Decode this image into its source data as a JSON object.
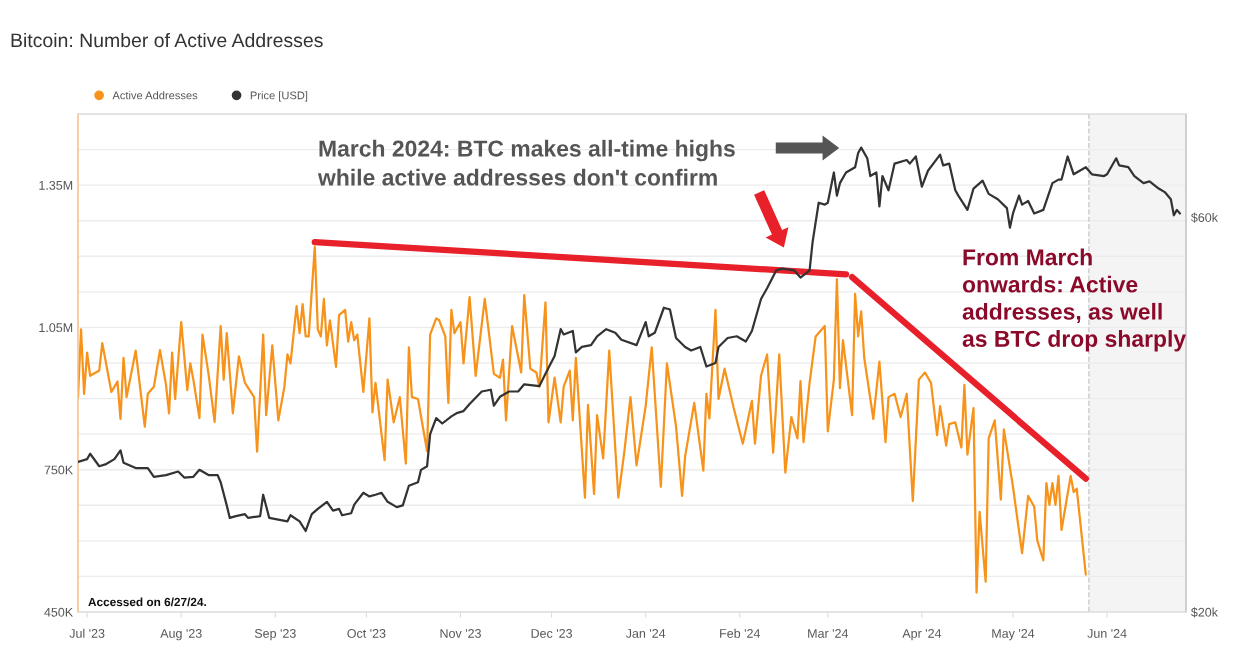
{
  "chart_data": {
    "type": "line",
    "title": "Bitcoin: Number of Active Addresses",
    "annotations": [
      "March 2024: BTC makes all-time highs\nwhile active addresses don't confirm",
      "From March\nonwards: Active\naddresses, as well\nas BTC drop sharply",
      "Accessed on 6/27/24."
    ],
    "series": [
      {
        "name": "Active Addresses",
        "color": "#f7931a",
        "x": [
          "2023-06-28",
          "2023-06-29",
          "2023-06-30",
          "2023-07-01",
          "2023-07-02",
          "2023-07-05",
          "2023-07-06",
          "2023-07-09",
          "2023-07-11",
          "2023-07-12",
          "2023-07-13",
          "2023-07-14",
          "2023-07-17",
          "2023-07-20",
          "2023-07-21",
          "2023-07-23",
          "2023-07-25",
          "2023-07-27",
          "2023-07-28",
          "2023-07-29",
          "2023-07-30",
          "2023-08-01",
          "2023-08-03",
          "2023-08-04",
          "2023-08-05",
          "2023-08-07",
          "2023-08-08",
          "2023-08-10",
          "2023-08-12",
          "2023-08-14",
          "2023-08-15",
          "2023-08-16",
          "2023-08-18",
          "2023-08-20",
          "2023-08-22",
          "2023-08-25",
          "2023-08-26",
          "2023-08-28",
          "2023-08-29",
          "2023-08-31",
          "2023-09-02",
          "2023-09-04",
          "2023-09-05",
          "2023-09-06",
          "2023-09-08",
          "2023-09-09",
          "2023-09-10",
          "2023-09-11",
          "2023-09-12",
          "2023-09-14",
          "2023-09-15",
          "2023-09-16",
          "2023-09-17",
          "2023-09-18",
          "2023-09-19",
          "2023-09-21",
          "2023-09-22",
          "2023-09-24",
          "2023-09-25",
          "2023-09-26",
          "2023-09-27",
          "2023-09-28",
          "2023-09-30",
          "2023-10-02",
          "2023-10-03",
          "2023-10-04",
          "2023-10-07",
          "2023-10-08",
          "2023-10-10",
          "2023-10-12",
          "2023-10-14",
          "2023-10-15",
          "2023-10-16",
          "2023-10-18",
          "2023-10-21",
          "2023-10-22",
          "2023-10-24",
          "2023-10-25",
          "2023-10-27",
          "2023-10-28",
          "2023-10-29",
          "2023-10-30",
          "2023-11-01",
          "2023-11-02",
          "2023-11-04",
          "2023-11-06",
          "2023-11-09",
          "2023-11-12",
          "2023-11-14",
          "2023-11-15",
          "2023-11-16",
          "2023-11-18",
          "2023-11-21",
          "2023-11-22",
          "2023-11-24",
          "2023-11-26",
          "2023-11-27",
          "2023-11-29",
          "2023-11-30",
          "2023-12-02",
          "2023-12-04",
          "2023-12-05",
          "2023-12-07",
          "2023-12-08",
          "2023-12-09",
          "2023-12-12",
          "2023-12-13",
          "2023-12-15",
          "2023-12-16",
          "2023-12-18",
          "2023-12-20",
          "2023-12-23",
          "2023-12-25",
          "2023-12-27",
          "2023-12-29",
          "2024-01-01",
          "2024-01-03",
          "2024-01-06",
          "2024-01-08",
          "2024-01-11",
          "2024-01-13",
          "2024-01-14",
          "2024-01-17",
          "2024-01-20",
          "2024-01-21",
          "2024-01-22",
          "2024-01-24",
          "2024-01-25",
          "2024-01-27",
          "2024-01-30",
          "2024-02-02",
          "2024-02-05",
          "2024-02-06",
          "2024-02-08",
          "2024-02-10",
          "2024-02-12",
          "2024-02-14",
          "2024-02-16",
          "2024-02-18",
          "2024-02-20",
          "2024-02-21",
          "2024-02-22",
          "2024-02-24",
          "2024-02-26",
          "2024-02-29",
          "2024-03-01",
          "2024-03-03",
          "2024-03-04",
          "2024-03-05",
          "2024-03-06",
          "2024-03-09",
          "2024-03-10",
          "2024-03-11",
          "2024-03-12",
          "2024-03-13",
          "2024-03-16",
          "2024-03-18",
          "2024-03-20",
          "2024-03-21",
          "2024-03-23",
          "2024-03-25",
          "2024-03-27",
          "2024-03-29",
          "2024-03-31",
          "2024-04-02",
          "2024-04-04",
          "2024-04-06",
          "2024-04-07",
          "2024-04-09",
          "2024-04-10",
          "2024-04-12",
          "2024-04-14",
          "2024-04-15",
          "2024-04-16",
          "2024-04-18",
          "2024-04-19",
          "2024-04-20",
          "2024-04-22",
          "2024-04-23",
          "2024-04-25",
          "2024-04-27",
          "2024-04-28",
          "2024-05-01",
          "2024-05-04",
          "2024-05-06",
          "2024-05-08",
          "2024-05-09",
          "2024-05-11",
          "2024-05-12",
          "2024-05-13",
          "2024-05-14",
          "2024-05-15",
          "2024-05-16",
          "2024-05-17",
          "2024-05-20",
          "2024-05-21",
          "2024-05-22",
          "2024-05-25"
        ],
        "values": [
          903000,
          1046000,
          910000,
          997000,
          948000,
          959000,
          1017000,
          914000,
          936000,
          857000,
          986000,
          903000,
          1001000,
          841000,
          910000,
          925000,
          1002000,
          929000,
          869000,
          997000,
          899000,
          1061000,
          918000,
          974000,
          940000,
          859000,
          1035000,
          952000,
          851000,
          1053000,
          940000,
          1038000,
          869000,
          989000,
          933000,
          903000,
          788000,
          1035000,
          865000,
          1012000,
          854000,
          925000,
          993000,
          974000,
          1095000,
          1038000,
          1099000,
          1031000,
          1031000,
          1220000,
          1046000,
          1031000,
          1110000,
          1012000,
          1065000,
          967000,
          1076000,
          1087000,
          1020000,
          1061000,
          1023000,
          1035000,
          914000,
          1069000,
          871000,
          933000,
          770000,
          940000,
          850000,
          903000,
          763000,
          1008000,
          903000,
          899000,
          789000,
          1035000,
          1069000,
          1065000,
          1031000,
          891000,
          1087000,
          1038000,
          1061000,
          974000,
          1114000,
          948000,
          1110000,
          952000,
          944000,
          982000,
          854000,
          1053000,
          955000,
          1118000,
          963000,
          955000,
          925000,
          1103000,
          850000,
          944000,
          850000,
          925000,
          959000,
          854000,
          986000,
          691000,
          887000,
          699000,
          865000,
          774000,
          1001000,
          691000,
          789000,
          903000,
          759000,
          884000,
          1008000,
          714000,
          974000,
          842000,
          695000,
          778000,
          891000,
          748000,
          910000,
          858000,
          1087000,
          899000,
          963000,
          880000,
          805000,
          895000,
          805000,
          948000,
          993000,
          786000,
          993000,
          744000,
          861000,
          816000,
          937000,
          808000,
          933000,
          1031000,
          1053000,
          831000,
          940000,
          1152000,
          922000,
          1023000,
          865000,
          1121000,
          1031000,
          1084000,
          986000,
          857000,
          978000,
          808000,
          903000,
          910000,
          861000,
          910000,
          684000,
          940000,
          955000,
          933000,
          823000,
          884000,
          801000,
          846000,
          850000,
          797000,
          929000,
          782000,
          880000,
          491000,
          661000,
          514000,
          816000,
          854000,
          687000,
          835000,
          714000,
          574000,
          695000,
          672000,
          601000,
          559000,
          722000,
          676000,
          722000,
          676000,
          737000,
          623000,
          737000,
          703000,
          710000,
          529000
        ]
      },
      {
        "name": "Price [USD]",
        "color": "#333333",
        "axis": "y2",
        "x": [
          "2023-06-28",
          "2023-07-01",
          "2023-07-02",
          "2023-07-05",
          "2023-07-07",
          "2023-07-10",
          "2023-07-12",
          "2023-07-13",
          "2023-07-17",
          "2023-07-21",
          "2023-07-23",
          "2023-07-27",
          "2023-07-31",
          "2023-08-02",
          "2023-08-05",
          "2023-08-07",
          "2023-08-10",
          "2023-08-13",
          "2023-08-14",
          "2023-08-16",
          "2023-08-17",
          "2023-08-19",
          "2023-08-22",
          "2023-08-23",
          "2023-08-27",
          "2023-08-28",
          "2023-08-30",
          "2023-09-02",
          "2023-09-05",
          "2023-09-06",
          "2023-09-09",
          "2023-09-11",
          "2023-09-13",
          "2023-09-15",
          "2023-09-18",
          "2023-09-20",
          "2023-09-22",
          "2023-09-23",
          "2023-09-26",
          "2023-09-27",
          "2023-09-30",
          "2023-10-02",
          "2023-10-04",
          "2023-10-06",
          "2023-10-08",
          "2023-10-11",
          "2023-10-13",
          "2023-10-15",
          "2023-10-18",
          "2023-10-19",
          "2023-10-21",
          "2023-10-22",
          "2023-10-24",
          "2023-10-26",
          "2023-10-29",
          "2023-10-31",
          "2023-11-02",
          "2023-11-04",
          "2023-11-08",
          "2023-11-11",
          "2023-11-12",
          "2023-11-14",
          "2023-11-17",
          "2023-11-20",
          "2023-11-22",
          "2023-11-27",
          "2023-11-29",
          "2023-12-02",
          "2023-12-04",
          "2023-12-05",
          "2023-12-08",
          "2023-12-09",
          "2023-12-11",
          "2023-12-14",
          "2023-12-16",
          "2023-12-19",
          "2023-12-22",
          "2023-12-24",
          "2023-12-29",
          "2024-01-01",
          "2024-01-02",
          "2024-01-04",
          "2024-01-07",
          "2024-01-09",
          "2024-01-11",
          "2024-01-14",
          "2024-01-16",
          "2024-01-19",
          "2024-01-21",
          "2024-01-24",
          "2024-01-25",
          "2024-01-28",
          "2024-01-31",
          "2024-02-03",
          "2024-02-05",
          "2024-02-08",
          "2024-02-10",
          "2024-02-13",
          "2024-02-15",
          "2024-02-19",
          "2024-02-21",
          "2024-02-24",
          "2024-02-25",
          "2024-02-27",
          "2024-02-29",
          "2024-03-01",
          "2024-03-03",
          "2024-03-04",
          "2024-03-05",
          "2024-03-07",
          "2024-03-10",
          "2024-03-11",
          "2024-03-12",
          "2024-03-14",
          "2024-03-15",
          "2024-03-17",
          "2024-03-18",
          "2024-03-19",
          "2024-03-21",
          "2024-03-23",
          "2024-03-27",
          "2024-03-28",
          "2024-03-30",
          "2024-04-01",
          "2024-04-03",
          "2024-04-07",
          "2024-04-08",
          "2024-04-10",
          "2024-04-12",
          "2024-04-13",
          "2024-04-16",
          "2024-04-18",
          "2024-04-21",
          "2024-04-23",
          "2024-04-26",
          "2024-04-29",
          "2024-04-30",
          "2024-05-01",
          "2024-05-03",
          "2024-05-04",
          "2024-05-06",
          "2024-05-08",
          "2024-05-11",
          "2024-05-14",
          "2024-05-16",
          "2024-05-17",
          "2024-05-19",
          "2024-05-21",
          "2024-05-25",
          "2024-05-27",
          "2024-05-31",
          "2024-06-01",
          "2024-06-04",
          "2024-06-05",
          "2024-06-08",
          "2024-06-10",
          "2024-06-13",
          "2024-06-15",
          "2024-06-18",
          "2024-06-20",
          "2024-06-22",
          "2024-06-23",
          "2024-06-24",
          "2024-06-25"
        ],
        "values": [
          30370,
          30610,
          31070,
          30010,
          30160,
          30610,
          31370,
          30310,
          29860,
          29860,
          29140,
          29280,
          29570,
          29080,
          29140,
          29710,
          29280,
          29280,
          28700,
          26910,
          25990,
          26120,
          26260,
          25990,
          26120,
          27720,
          25990,
          25860,
          25740,
          26180,
          25740,
          25060,
          26260,
          26650,
          27180,
          26520,
          26650,
          26180,
          26330,
          26970,
          27870,
          27590,
          27720,
          27870,
          27180,
          26780,
          26910,
          28420,
          28700,
          29710,
          30010,
          32810,
          34310,
          33800,
          34480,
          34820,
          34990,
          35690,
          36950,
          37130,
          35520,
          36410,
          36950,
          36950,
          37700,
          37510,
          38830,
          40800,
          43950,
          43310,
          43730,
          41210,
          41830,
          42040,
          43090,
          43950,
          43510,
          42670,
          42040,
          44830,
          43090,
          43510,
          46650,
          46420,
          42880,
          41830,
          41420,
          41830,
          39610,
          40000,
          41830,
          42880,
          43090,
          42460,
          43730,
          47810,
          49260,
          51760,
          52020,
          51760,
          50740,
          51760,
          56030,
          62490,
          62170,
          62490,
          67980,
          63740,
          65990,
          67980,
          68990,
          71780,
          72860,
          70720,
          67310,
          67980,
          61870,
          67310,
          64690,
          69680,
          70380,
          69680,
          71080,
          65340,
          68310,
          71430,
          69330,
          69680,
          64690,
          63740,
          61260,
          65010,
          66450,
          64050,
          63110,
          61560,
          58300,
          60650,
          63740,
          62170,
          62800,
          60650,
          61260,
          65990,
          66650,
          66650,
          71080,
          67640,
          68990,
          67640,
          67310,
          67640,
          70720,
          69330,
          68990,
          67310,
          65990,
          66310,
          65010,
          64370,
          63110,
          60350,
          61260,
          60650
        ]
      },
      {
        "color": "#e8202a",
        "x": [
          "2023-09-14",
          "2024-03-07"
        ],
        "values": [
          1230000,
          1162000
        ]
      },
      {
        "color": "#e8202a",
        "x": [
          "2024-03-09",
          "2024-05-25"
        ],
        "values": [
          1156000,
          731000
        ]
      }
    ],
    "xlim": [
      "2023-06-28",
      "2024-06-27"
    ],
    "xticks": [
      {
        "value": "2023-07-01",
        "label": "Jul '23"
      },
      {
        "value": "2023-08-01",
        "label": "Aug '23"
      },
      {
        "value": "2023-09-01",
        "label": "Sep '23"
      },
      {
        "value": "2023-10-01",
        "label": "Oct '23"
      },
      {
        "value": "2023-11-01",
        "label": "Nov '23"
      },
      {
        "value": "2023-12-01",
        "label": "Dec '23"
      },
      {
        "value": "2024-01-01",
        "label": "Jan '24"
      },
      {
        "value": "2024-02-01",
        "label": "Feb '24"
      },
      {
        "value": "2024-03-01",
        "label": "Mar '24"
      },
      {
        "value": "2024-04-01",
        "label": "Apr '24"
      },
      {
        "value": "2024-05-01",
        "label": "May '24"
      },
      {
        "value": "2024-06-01",
        "label": "Jun '24"
      }
    ],
    "ylim": [
      450000,
      1500000
    ],
    "yticks": [
      {
        "value": 450000,
        "label": "450K"
      },
      {
        "value": 525000,
        "label": null
      },
      {
        "value": 600000,
        "label": null
      },
      {
        "value": 675000,
        "label": null
      },
      {
        "value": 750000,
        "label": "750K"
      },
      {
        "value": 825000,
        "label": null
      },
      {
        "value": 900000,
        "label": null
      },
      {
        "value": 975000,
        "label": null
      },
      {
        "value": 1050000,
        "label": "1.05M"
      },
      {
        "value": 1125000,
        "label": null
      },
      {
        "value": 1200000,
        "label": null
      },
      {
        "value": 1275000,
        "label": null
      },
      {
        "value": 1350000,
        "label": "1.35M"
      },
      {
        "value": 1425000,
        "label": null
      },
      {
        "value": 1500000,
        "label": null
      }
    ],
    "y2lim": [
      20000,
      80000
    ],
    "y2ticks": [
      {
        "value": 20000,
        "label": "$20k"
      },
      {
        "value": 60000,
        "label": "$60k"
      }
    ],
    "log": "y2",
    "bands": [
      {
        "axis": "x",
        "from": "2024-05-26",
        "to": "2024-06-27",
        "color": "#f4f4f4"
      }
    ],
    "ref_lines": [
      {
        "axis": "x",
        "value": "2024-05-26",
        "color": "#cccccc",
        "line_style": "dashed"
      }
    ],
    "grid": "y",
    "legend": "top left"
  }
}
